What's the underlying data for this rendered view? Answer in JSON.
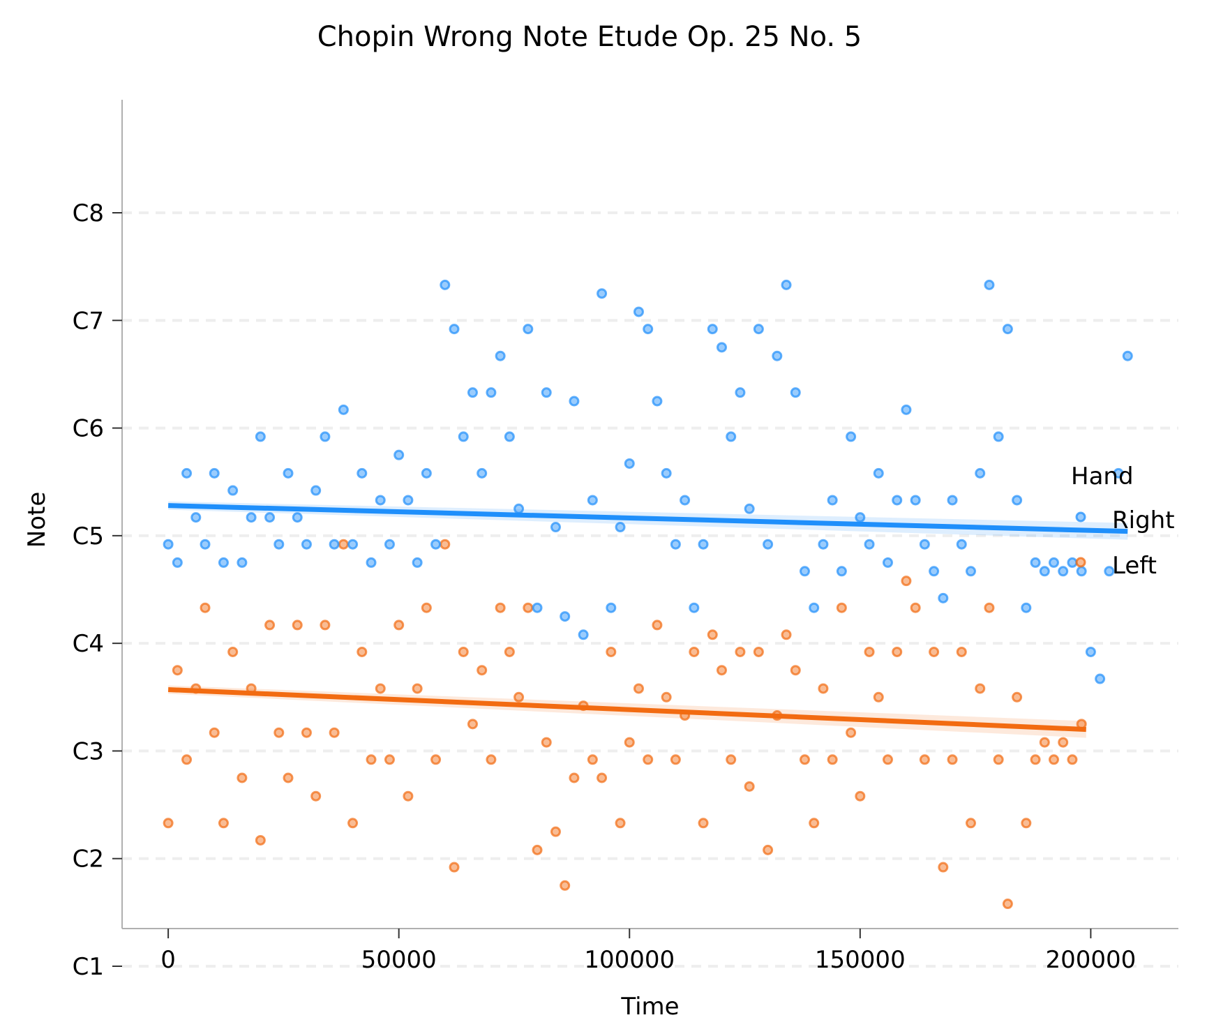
{
  "chart_data": {
    "type": "scatter",
    "title": "Chopin Wrong Note Etude Op. 25 No. 5",
    "xlabel": "Time",
    "ylabel": "Note",
    "xlim": [
      -10000,
      219000
    ],
    "ylim": [
      1.35,
      9.05
    ],
    "x_ticks": [
      {
        "value": 0,
        "label": "0"
      },
      {
        "value": 50000,
        "label": "50000"
      },
      {
        "value": 100000,
        "label": "100000"
      },
      {
        "value": 150000,
        "label": "150000"
      },
      {
        "value": 200000,
        "label": "200000"
      }
    ],
    "y_ticks": [
      {
        "value": 1,
        "label": "C1"
      },
      {
        "value": 2,
        "label": "C2"
      },
      {
        "value": 3,
        "label": "C3"
      },
      {
        "value": 4,
        "label": "C4"
      },
      {
        "value": 5,
        "label": "C5"
      },
      {
        "value": 6,
        "label": "C6"
      },
      {
        "value": 7,
        "label": "C7"
      },
      {
        "value": 8,
        "label": "C8"
      }
    ],
    "grid": "horizontal dashed",
    "legend": {
      "title": "Hand",
      "position": "right"
    },
    "series": [
      {
        "name": "Right",
        "color": "#1f8ffb",
        "trend": {
          "x": [
            0,
            208000
          ],
          "y": [
            5.28,
            5.04
          ]
        },
        "points": [
          [
            0,
            4.92
          ],
          [
            2000,
            4.75
          ],
          [
            4000,
            5.58
          ],
          [
            6000,
            5.17
          ],
          [
            8000,
            4.92
          ],
          [
            10000,
            5.58
          ],
          [
            12000,
            4.75
          ],
          [
            14000,
            5.42
          ],
          [
            16000,
            4.75
          ],
          [
            18000,
            5.17
          ],
          [
            20000,
            5.92
          ],
          [
            22000,
            5.17
          ],
          [
            24000,
            4.92
          ],
          [
            26000,
            5.58
          ],
          [
            28000,
            5.17
          ],
          [
            30000,
            4.92
          ],
          [
            32000,
            5.42
          ],
          [
            34000,
            5.92
          ],
          [
            36000,
            4.92
          ],
          [
            38000,
            6.17
          ],
          [
            40000,
            4.92
          ],
          [
            42000,
            5.58
          ],
          [
            44000,
            4.75
          ],
          [
            46000,
            5.33
          ],
          [
            48000,
            4.92
          ],
          [
            50000,
            5.75
          ],
          [
            52000,
            5.33
          ],
          [
            54000,
            4.75
          ],
          [
            56000,
            5.58
          ],
          [
            58000,
            4.92
          ],
          [
            60000,
            7.33
          ],
          [
            62000,
            6.92
          ],
          [
            64000,
            5.92
          ],
          [
            66000,
            6.33
          ],
          [
            68000,
            5.58
          ],
          [
            70000,
            6.33
          ],
          [
            72000,
            6.67
          ],
          [
            74000,
            5.92
          ],
          [
            76000,
            5.25
          ],
          [
            78000,
            6.92
          ],
          [
            80000,
            4.33
          ],
          [
            82000,
            6.33
          ],
          [
            84000,
            5.08
          ],
          [
            86000,
            4.25
          ],
          [
            88000,
            6.25
          ],
          [
            90000,
            4.08
          ],
          [
            92000,
            5.33
          ],
          [
            94000,
            7.25
          ],
          [
            96000,
            4.33
          ],
          [
            98000,
            5.08
          ],
          [
            100000,
            5.67
          ],
          [
            102000,
            7.08
          ],
          [
            104000,
            6.92
          ],
          [
            106000,
            6.25
          ],
          [
            108000,
            5.58
          ],
          [
            110000,
            4.92
          ],
          [
            112000,
            5.33
          ],
          [
            114000,
            4.33
          ],
          [
            116000,
            4.92
          ],
          [
            118000,
            6.92
          ],
          [
            120000,
            6.75
          ],
          [
            122000,
            5.92
          ],
          [
            124000,
            6.33
          ],
          [
            126000,
            5.25
          ],
          [
            128000,
            6.92
          ],
          [
            130000,
            4.92
          ],
          [
            132000,
            6.67
          ],
          [
            134000,
            7.33
          ],
          [
            136000,
            6.33
          ],
          [
            138000,
            4.67
          ],
          [
            140000,
            4.33
          ],
          [
            142000,
            4.92
          ],
          [
            144000,
            5.33
          ],
          [
            146000,
            4.67
          ],
          [
            148000,
            5.92
          ],
          [
            150000,
            5.17
          ],
          [
            152000,
            4.92
          ],
          [
            154000,
            5.58
          ],
          [
            156000,
            4.75
          ],
          [
            158000,
            5.33
          ],
          [
            160000,
            6.17
          ],
          [
            162000,
            5.33
          ],
          [
            164000,
            4.92
          ],
          [
            166000,
            4.67
          ],
          [
            168000,
            4.42
          ],
          [
            170000,
            5.33
          ],
          [
            172000,
            4.92
          ],
          [
            174000,
            4.67
          ],
          [
            176000,
            5.58
          ],
          [
            178000,
            7.33
          ],
          [
            180000,
            5.92
          ],
          [
            182000,
            6.92
          ],
          [
            184000,
            5.33
          ],
          [
            186000,
            4.33
          ],
          [
            188000,
            4.75
          ],
          [
            190000,
            4.67
          ],
          [
            192000,
            4.75
          ],
          [
            194000,
            4.67
          ],
          [
            196000,
            4.75
          ],
          [
            198000,
            4.67
          ],
          [
            200000,
            3.92
          ],
          [
            202000,
            3.67
          ],
          [
            204000,
            4.67
          ],
          [
            206000,
            5.58
          ],
          [
            208000,
            6.67
          ]
        ]
      },
      {
        "name": "Left",
        "color": "#f26b11",
        "trend": {
          "x": [
            0,
            199000
          ],
          "y": [
            3.57,
            3.2
          ]
        },
        "points": [
          [
            0,
            2.33
          ],
          [
            2000,
            3.75
          ],
          [
            4000,
            2.92
          ],
          [
            6000,
            3.58
          ],
          [
            8000,
            4.33
          ],
          [
            10000,
            3.17
          ],
          [
            12000,
            2.33
          ],
          [
            14000,
            3.92
          ],
          [
            16000,
            2.75
          ],
          [
            18000,
            3.58
          ],
          [
            20000,
            2.17
          ],
          [
            22000,
            4.17
          ],
          [
            24000,
            3.17
          ],
          [
            26000,
            2.75
          ],
          [
            28000,
            4.17
          ],
          [
            30000,
            3.17
          ],
          [
            32000,
            2.58
          ],
          [
            34000,
            4.17
          ],
          [
            36000,
            3.17
          ],
          [
            38000,
            4.92
          ],
          [
            40000,
            2.33
          ],
          [
            42000,
            3.92
          ],
          [
            44000,
            2.92
          ],
          [
            46000,
            3.58
          ],
          [
            48000,
            2.92
          ],
          [
            50000,
            4.17
          ],
          [
            52000,
            2.58
          ],
          [
            54000,
            3.58
          ],
          [
            56000,
            4.33
          ],
          [
            58000,
            2.92
          ],
          [
            60000,
            4.92
          ],
          [
            62000,
            1.92
          ],
          [
            64000,
            3.92
          ],
          [
            66000,
            3.25
          ],
          [
            68000,
            3.75
          ],
          [
            70000,
            2.92
          ],
          [
            72000,
            4.33
          ],
          [
            74000,
            3.92
          ],
          [
            76000,
            3.5
          ],
          [
            78000,
            4.33
          ],
          [
            80000,
            2.08
          ],
          [
            82000,
            3.08
          ],
          [
            84000,
            2.25
          ],
          [
            86000,
            1.75
          ],
          [
            88000,
            2.75
          ],
          [
            90000,
            3.42
          ],
          [
            92000,
            2.92
          ],
          [
            94000,
            2.75
          ],
          [
            96000,
            3.92
          ],
          [
            98000,
            2.33
          ],
          [
            100000,
            3.08
          ],
          [
            102000,
            3.58
          ],
          [
            104000,
            2.92
          ],
          [
            106000,
            4.17
          ],
          [
            108000,
            3.5
          ],
          [
            110000,
            2.92
          ],
          [
            112000,
            3.33
          ],
          [
            114000,
            3.92
          ],
          [
            116000,
            2.33
          ],
          [
            118000,
            4.08
          ],
          [
            120000,
            3.75
          ],
          [
            122000,
            2.92
          ],
          [
            124000,
            3.92
          ],
          [
            126000,
            2.67
          ],
          [
            128000,
            3.92
          ],
          [
            130000,
            2.08
          ],
          [
            132000,
            3.33
          ],
          [
            134000,
            4.08
          ],
          [
            136000,
            3.75
          ],
          [
            138000,
            2.92
          ],
          [
            140000,
            2.33
          ],
          [
            142000,
            3.58
          ],
          [
            144000,
            2.92
          ],
          [
            146000,
            4.33
          ],
          [
            148000,
            3.17
          ],
          [
            150000,
            2.58
          ],
          [
            152000,
            3.92
          ],
          [
            154000,
            3.5
          ],
          [
            156000,
            2.92
          ],
          [
            158000,
            3.92
          ],
          [
            160000,
            4.58
          ],
          [
            162000,
            4.33
          ],
          [
            164000,
            2.92
          ],
          [
            166000,
            3.92
          ],
          [
            168000,
            1.92
          ],
          [
            170000,
            2.92
          ],
          [
            172000,
            3.92
          ],
          [
            174000,
            2.33
          ],
          [
            176000,
            3.58
          ],
          [
            178000,
            4.33
          ],
          [
            180000,
            2.92
          ],
          [
            182000,
            1.58
          ],
          [
            184000,
            3.5
          ],
          [
            186000,
            2.33
          ],
          [
            188000,
            2.92
          ],
          [
            190000,
            3.08
          ],
          [
            192000,
            2.92
          ],
          [
            194000,
            3.08
          ],
          [
            196000,
            2.92
          ],
          [
            198000,
            3.25
          ]
        ]
      }
    ]
  }
}
